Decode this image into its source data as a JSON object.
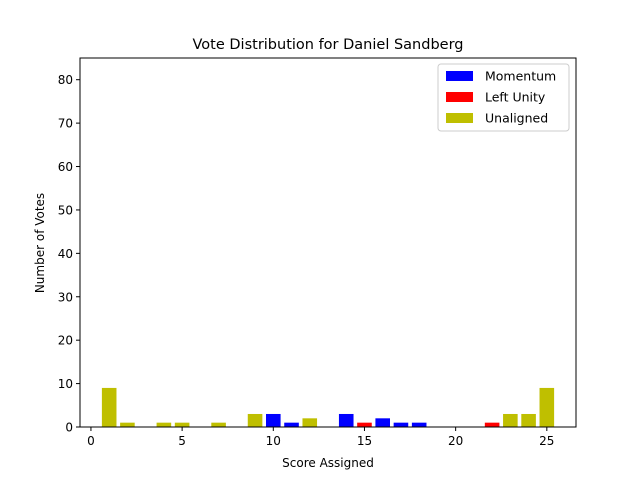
{
  "chart_data": {
    "type": "bar",
    "title": "Vote Distribution for Daniel Sandberg",
    "xlabel": "Score Assigned",
    "ylabel": "Number of Votes",
    "xlim": [
      -0.6,
      26.6
    ],
    "ylim": [
      0,
      85
    ],
    "xticks": [
      0,
      5,
      10,
      15,
      20,
      25
    ],
    "yticks": [
      0,
      10,
      20,
      30,
      40,
      50,
      60,
      70,
      80
    ],
    "grid": false,
    "legend_position": "top-right",
    "series": [
      {
        "name": "Momentum",
        "color": "#0000ff",
        "x": [
          10,
          11,
          14,
          16,
          17,
          18
        ],
        "values": [
          3,
          1,
          3,
          2,
          1,
          1
        ]
      },
      {
        "name": "Left Unity",
        "color": "#ff0000",
        "x": [
          15,
          22
        ],
        "values": [
          1,
          1
        ]
      },
      {
        "name": "Unaligned",
        "color": "#bfbf00",
        "x": [
          1,
          2,
          4,
          5,
          7,
          9,
          12,
          23,
          24,
          25
        ],
        "values": [
          9,
          1,
          1,
          1,
          1,
          3,
          2,
          3,
          3,
          9
        ]
      }
    ]
  }
}
